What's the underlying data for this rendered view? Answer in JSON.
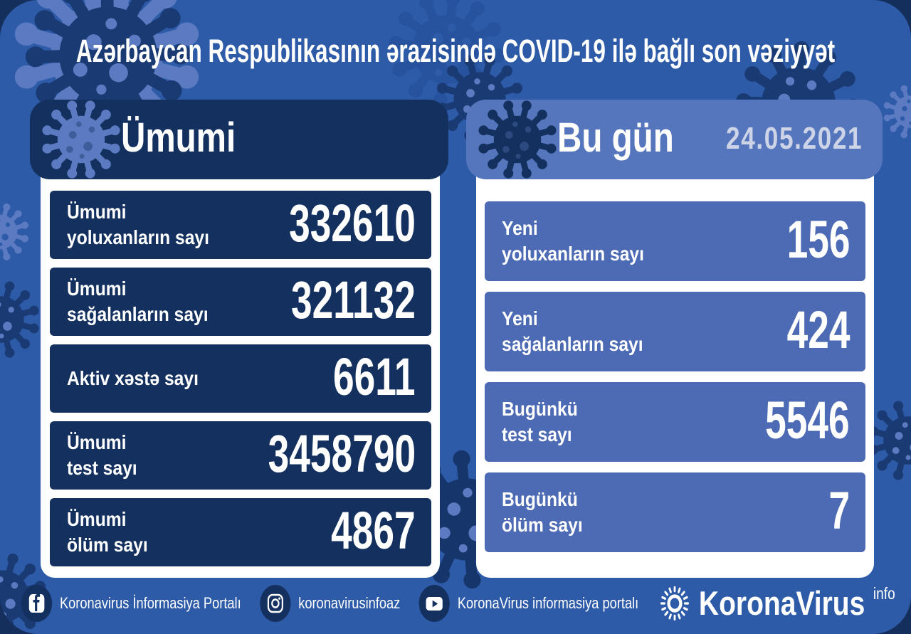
{
  "title": "Azərbaycan Respublikasının ərazisində COVID-19 ilə bağlı son vəziyyət",
  "left_panel": {
    "header": "Ümumi",
    "rows": [
      {
        "label_line1": "Ümumi",
        "label_line2": "yoluxanların sayı",
        "value": "332610"
      },
      {
        "label_line1": "Ümumi",
        "label_line2": "sağalanların sayı",
        "value": "321132"
      },
      {
        "label_line1": "Aktiv xəstə sayı",
        "label_line2": "",
        "value": "6611"
      },
      {
        "label_line1": "Ümumi",
        "label_line2": "test sayı",
        "value": "3458790"
      },
      {
        "label_line1": "Ümumi",
        "label_line2": "ölüm sayı",
        "value": "4867"
      }
    ]
  },
  "right_panel": {
    "header": "Bu gün",
    "date": "24.05.2021",
    "rows": [
      {
        "label_line1": "Yeni",
        "label_line2": "yoluxanların sayı",
        "value": "156"
      },
      {
        "label_line1": "Yeni",
        "label_line2": "sağalanların sayı",
        "value": "424"
      },
      {
        "label_line1": "Bugünkü",
        "label_line2": "test sayı",
        "value": "5546"
      },
      {
        "label_line1": "Bugünkü",
        "label_line2": "ölüm sayı",
        "value": "7"
      }
    ]
  },
  "footer": {
    "facebook_label": "Koronavirus İnformasiya Portalı",
    "instagram_label": "koronavirusinfoaz",
    "youtube_label": "KoronaVirus informasiya portalı",
    "brand": "KoronaVirus",
    "brand_suffix": "info"
  },
  "icons": {
    "header_left": "virus-icon",
    "header_right": "virus-icon",
    "footer_1": "facebook-icon",
    "footer_2": "instagram-icon",
    "footer_3": "youtube-icon",
    "brand": "virus-ring-icon"
  },
  "colors": {
    "outer_background": "#152f5d",
    "canvas_background": "#2d5ba8",
    "dark_navy_panel": "#13305f",
    "light_blue_panel": "#4d6ab4",
    "light_blue_header": "#5575bc",
    "date_text": "#cdd4e8",
    "decor_light": "#5b7ac1",
    "decor_dark": "#1a3a74",
    "text": "#ffffff"
  }
}
